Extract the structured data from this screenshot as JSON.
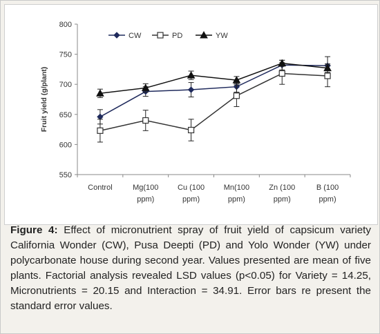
{
  "caption": {
    "label": "Figure 4:",
    "text": " Effect of micronutrient spray of fruit yield of capsicum variety California Wonder (CW), Pusa Deepti (PD) and Yolo Wonder (YW) under polycarbonate house during second year. Values presented are mean of five plants. Factorial analysis revealed LSD values (p<0.05) for Variety = 14.25, Micronutrients = 20.15 and Interaction = 34.91. Error bars re present the standard error values."
  },
  "chart_data": {
    "type": "line",
    "ylabel": "Fruit yield (g/plant)",
    "xlabel": "",
    "ylim": [
      550,
      800
    ],
    "yticks": [
      550,
      600,
      650,
      700,
      750,
      800
    ],
    "categories": [
      [
        "Control"
      ],
      [
        "Mg(100",
        "ppm)"
      ],
      [
        "Cu (100",
        "ppm)"
      ],
      [
        "Mn(100",
        "ppm)"
      ],
      [
        "Zn (100",
        "ppm)"
      ],
      [
        "B (100",
        "ppm)"
      ]
    ],
    "legend_position": "top-left",
    "series": [
      {
        "name": "CW",
        "marker": "diamond",
        "color": "#1f2a5c",
        "values": [
          646,
          688,
          691,
          696,
          732,
          731
        ],
        "errors": [
          12,
          8,
          12,
          9,
          8,
          15
        ]
      },
      {
        "name": "PD",
        "marker": "square",
        "color": "#333333",
        "values": [
          623,
          640,
          624,
          681,
          718,
          714
        ],
        "errors": [
          19,
          17,
          18,
          18,
          18,
          18
        ]
      },
      {
        "name": "YW",
        "marker": "triangle",
        "color": "#111111",
        "values": [
          685,
          694,
          715,
          707,
          735,
          727
        ],
        "errors": [
          7,
          7,
          7,
          6,
          5,
          7
        ]
      }
    ]
  }
}
